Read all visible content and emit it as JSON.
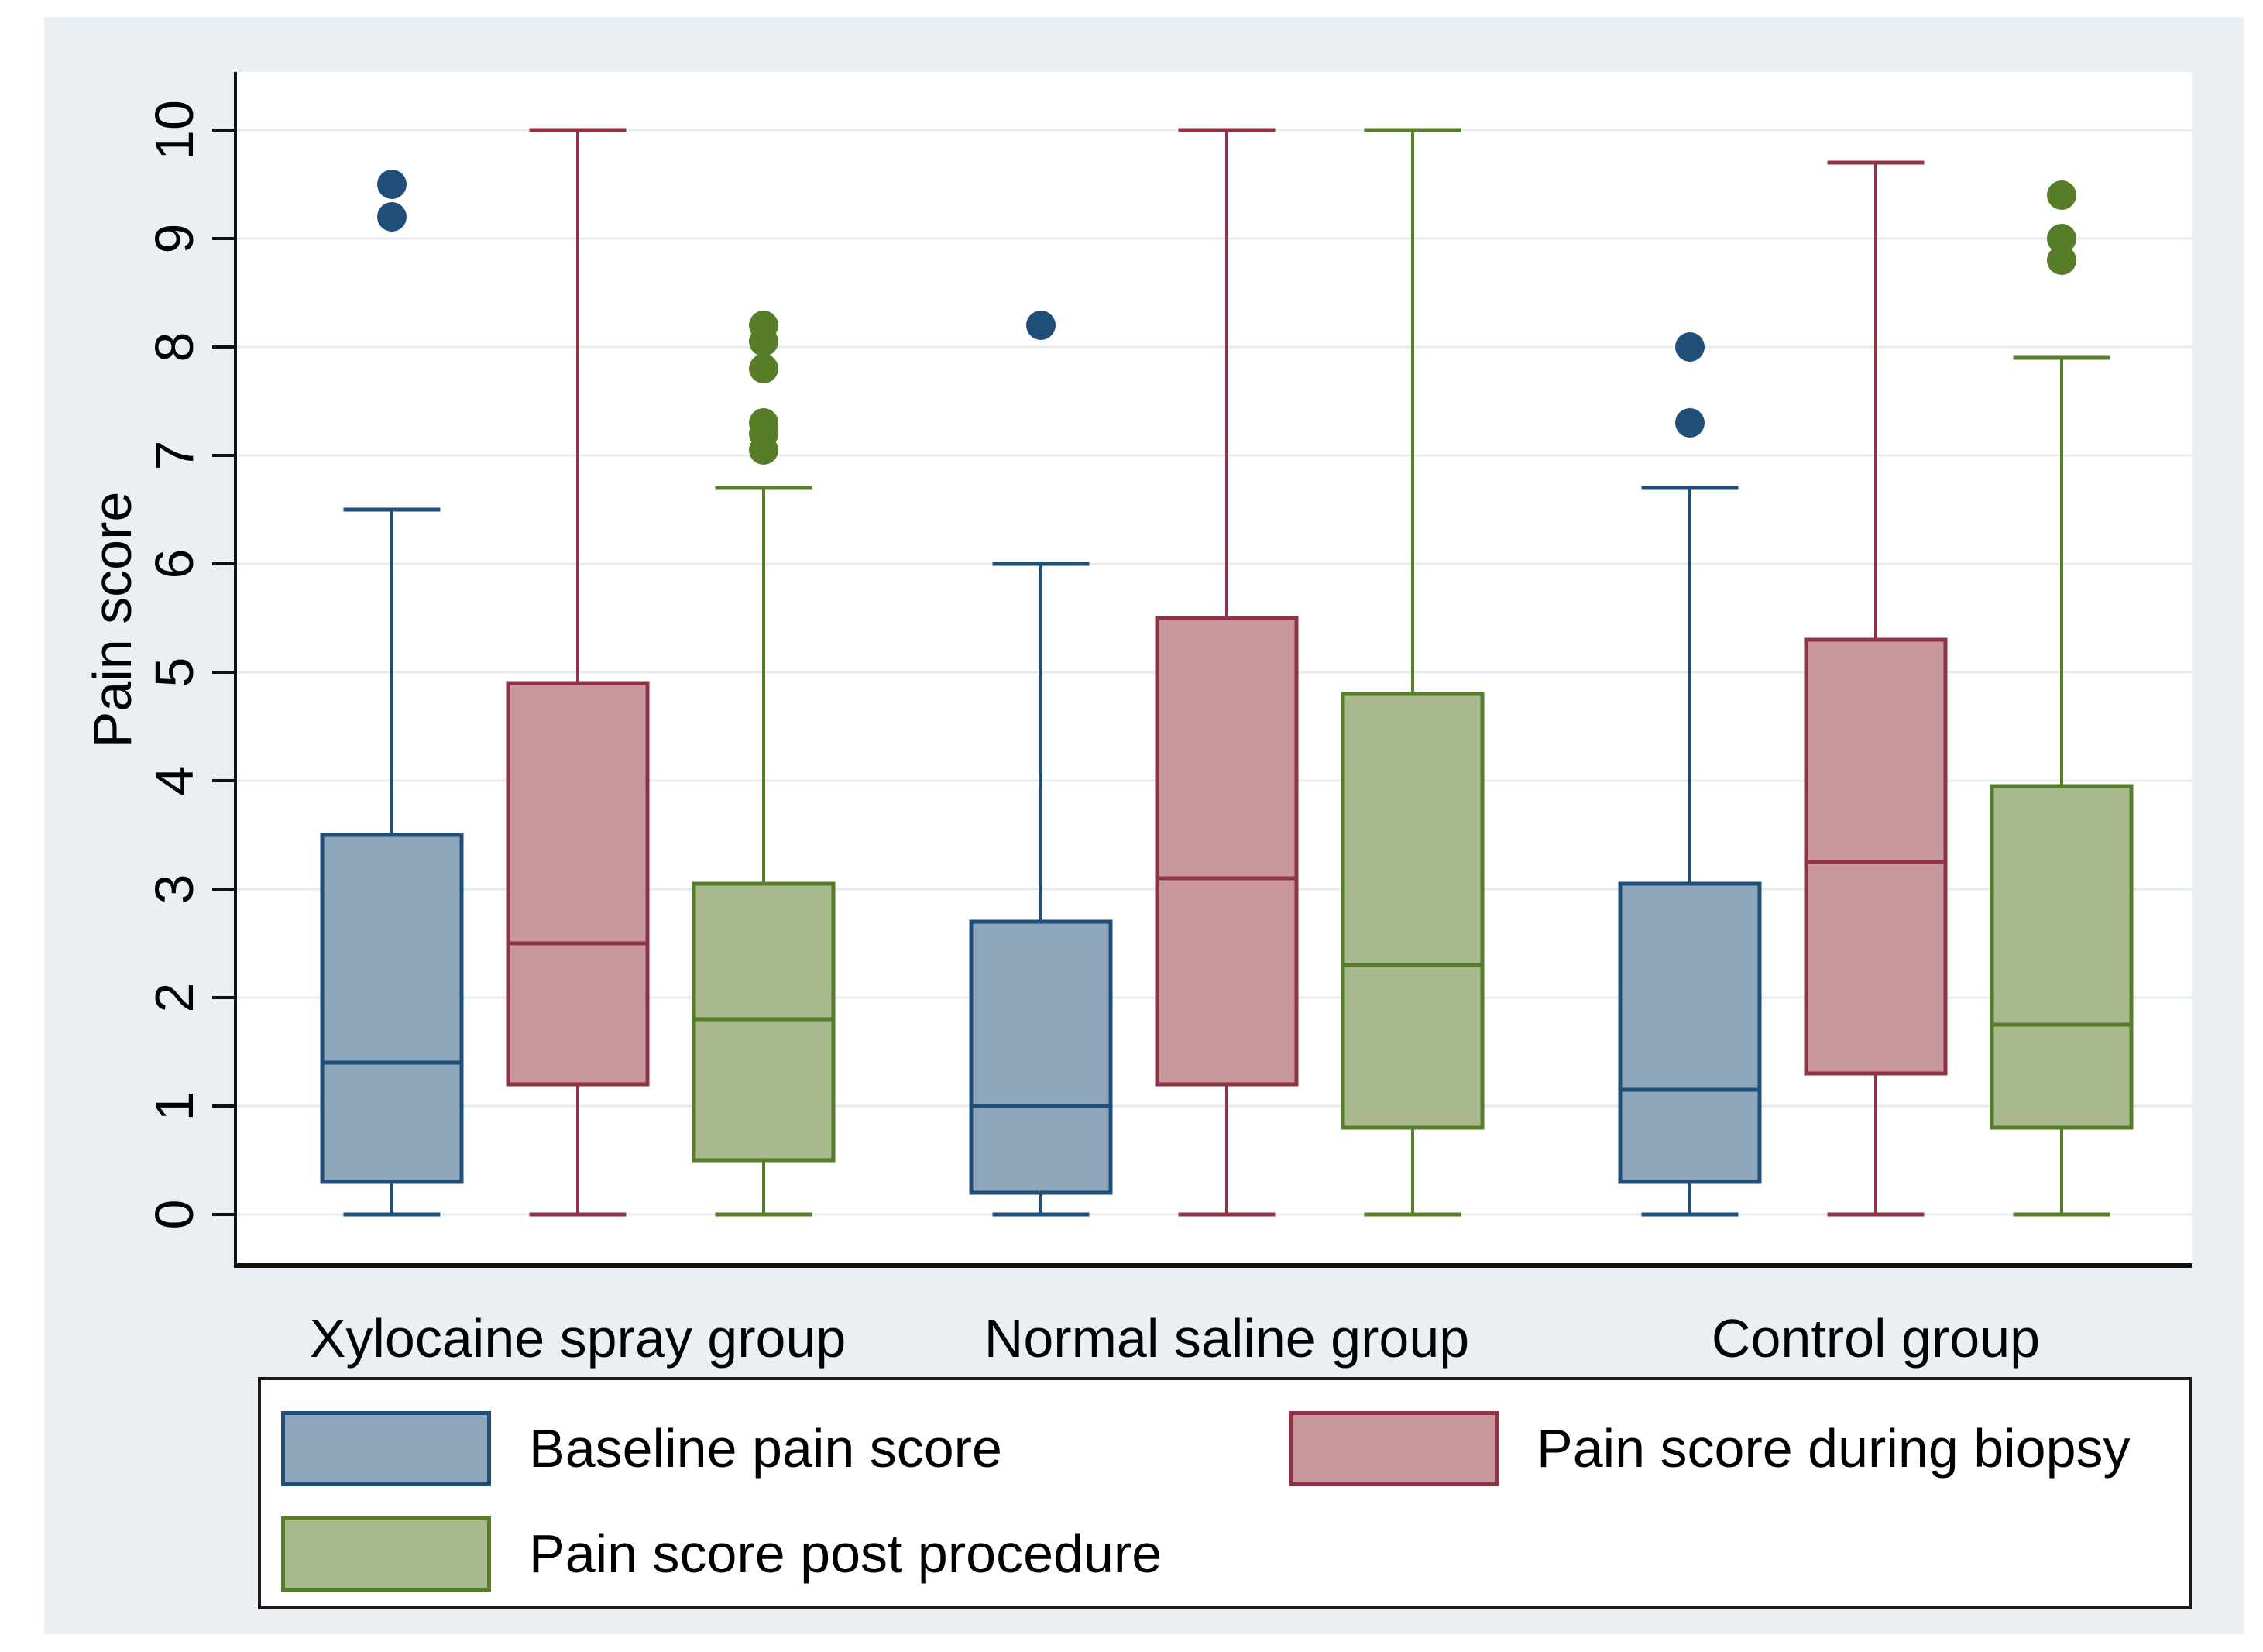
{
  "figure": {
    "background_color": "#e9eff3",
    "plot_background_color": "#ffffff",
    "gridline_color": "#e3ecf2",
    "axis_color": "#111111"
  },
  "y_axis": {
    "title": "Pain score",
    "tick_values": [
      0,
      1,
      2,
      3,
      4,
      5,
      6,
      7,
      8,
      9,
      10
    ]
  },
  "chart_data": {
    "type": "boxplot",
    "title": "",
    "xlabel": "",
    "ylabel": "Pain score",
    "ylim": [
      0,
      10
    ],
    "grid": "horizontal",
    "legend_position": "bottom",
    "categories": [
      "Xylocaine spray group",
      "Normal saline group",
      "Control group"
    ],
    "series": [
      {
        "name": "Baseline pain score",
        "fill": "#8ea6bc",
        "line": "#1f4e79",
        "boxes": [
          {
            "whisker_low": 0,
            "q1": 0.3,
            "median": 1.4,
            "q3": 3.5,
            "whisker_high": 6.5,
            "outliers": [
              9.2,
              9.5
            ]
          },
          {
            "whisker_low": 0,
            "q1": 0.2,
            "median": 1.0,
            "q3": 2.7,
            "whisker_high": 6.0,
            "outliers": [
              8.2
            ]
          },
          {
            "whisker_low": 0,
            "q1": 0.3,
            "median": 1.15,
            "q3": 3.05,
            "whisker_high": 6.7,
            "outliers": [
              7.3,
              8.0
            ]
          }
        ]
      },
      {
        "name": "Pain score during biopsy",
        "fill": "#c9979e",
        "line": "#8f3444",
        "boxes": [
          {
            "whisker_low": 0,
            "q1": 1.2,
            "median": 2.5,
            "q3": 4.9,
            "whisker_high": 10,
            "outliers": []
          },
          {
            "whisker_low": 0,
            "q1": 1.2,
            "median": 3.1,
            "q3": 5.5,
            "whisker_high": 10,
            "outliers": []
          },
          {
            "whisker_low": 0,
            "q1": 1.3,
            "median": 3.25,
            "q3": 5.3,
            "whisker_high": 9.7,
            "outliers": []
          }
        ]
      },
      {
        "name": "Pain score post procedure",
        "fill": "#a9b88e",
        "line": "#567d28",
        "boxes": [
          {
            "whisker_low": 0,
            "q1": 0.5,
            "median": 1.8,
            "q3": 3.05,
            "whisker_high": 6.7,
            "outliers": [
              7.05,
              7.2,
              7.3,
              7.8,
              8.05,
              8.2
            ]
          },
          {
            "whisker_low": 0,
            "q1": 0.8,
            "median": 2.3,
            "q3": 4.8,
            "whisker_high": 10,
            "outliers": []
          },
          {
            "whisker_low": 0,
            "q1": 0.8,
            "median": 1.75,
            "q3": 3.95,
            "whisker_high": 7.9,
            "outliers": [
              8.8,
              9.0,
              9.4
            ]
          }
        ]
      }
    ]
  }
}
